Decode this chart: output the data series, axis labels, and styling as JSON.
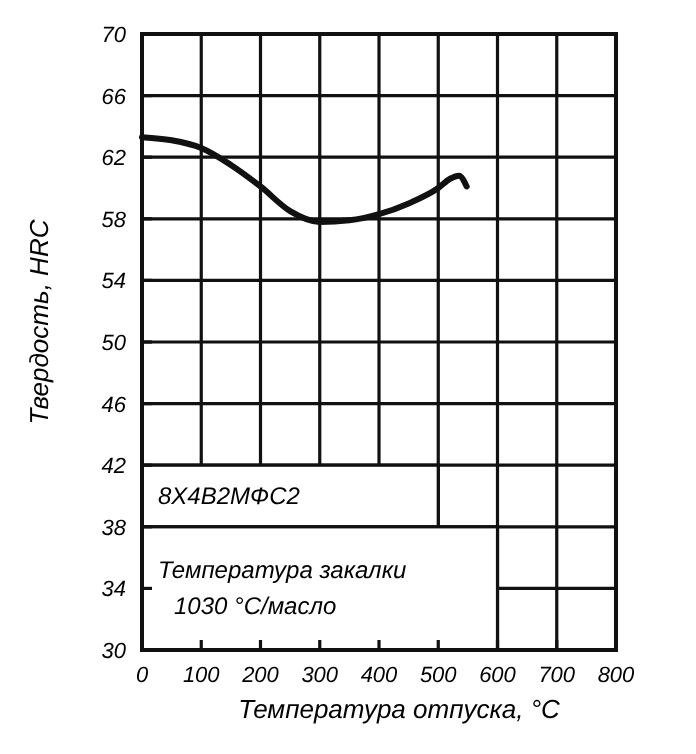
{
  "chart_data": {
    "type": "line",
    "xlabel": "Температура отпуска, °C",
    "ylabel": "Твердость, HRC",
    "x": [
      0,
      50,
      100,
      150,
      200,
      250,
      300,
      350,
      400,
      450,
      500,
      520,
      535,
      548
    ],
    "series": [
      {
        "color": "#111111",
        "values": [
          63.3,
          63.1,
          62.6,
          61.5,
          60.1,
          58.5,
          57.8,
          57.9,
          58.3,
          59.0,
          60.0,
          60.6,
          60.8,
          60.1
        ]
      }
    ],
    "xlim": [
      0,
      800
    ],
    "xticks": [
      0,
      100,
      200,
      300,
      400,
      500,
      600,
      700,
      800
    ],
    "ylim": [
      30,
      70
    ],
    "yticks": [
      30,
      34,
      38,
      42,
      46,
      50,
      54,
      58,
      62,
      66,
      70
    ],
    "grid": true,
    "marker": "none",
    "line_style": "solid",
    "annotations": [
      "8Х4В2МФС2",
      "Температура закалки\n1030 °С/масло"
    ]
  }
}
